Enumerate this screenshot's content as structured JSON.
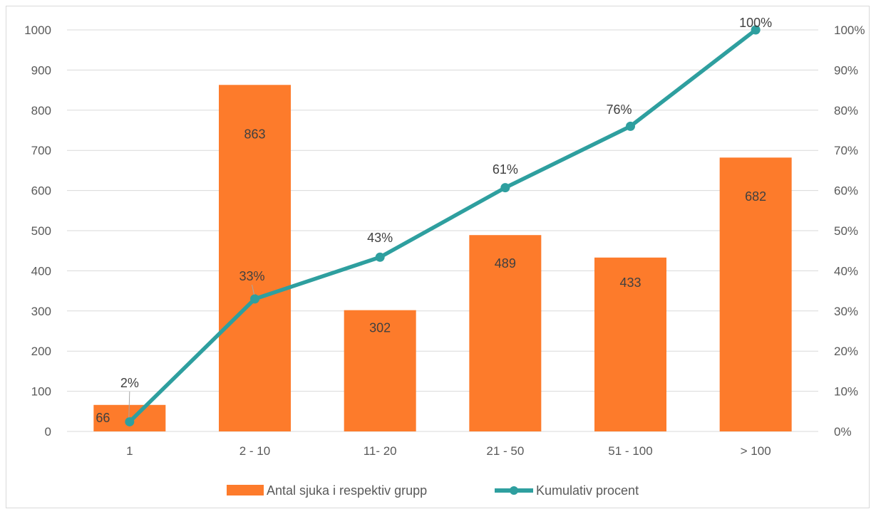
{
  "chart_data": {
    "type": "bar",
    "categories": [
      "1",
      "2 - 10",
      "11- 20",
      "21 - 50",
      "51 - 100",
      "> 100"
    ],
    "series": [
      {
        "name": "Antal sjuka i respektiv grupp",
        "kind": "bar",
        "axis": "left",
        "color": "#fd7b2b",
        "values": [
          66,
          863,
          302,
          489,
          433,
          682
        ],
        "labels": [
          "66",
          "863",
          "302",
          "489",
          "433",
          "682"
        ]
      },
      {
        "name": "Kumulativ procent",
        "kind": "line",
        "axis": "right",
        "color": "#2e9f9f",
        "values": [
          2.4,
          33,
          43.4,
          60.7,
          76,
          100
        ],
        "labels": [
          "2%",
          "33%",
          "43%",
          "61%",
          "76%",
          "100%"
        ]
      }
    ],
    "left_axis": {
      "ylim": [
        0,
        1000
      ],
      "ticks": [
        "0",
        "100",
        "200",
        "300",
        "400",
        "500",
        "600",
        "700",
        "800",
        "900",
        "1000"
      ]
    },
    "right_axis": {
      "ylim": [
        0,
        100
      ],
      "ticks": [
        "0%",
        "10%",
        "20%",
        "30%",
        "40%",
        "50%",
        "60%",
        "70%",
        "80%",
        "90%",
        "100%"
      ]
    },
    "grid": true,
    "legend": "bottom"
  }
}
